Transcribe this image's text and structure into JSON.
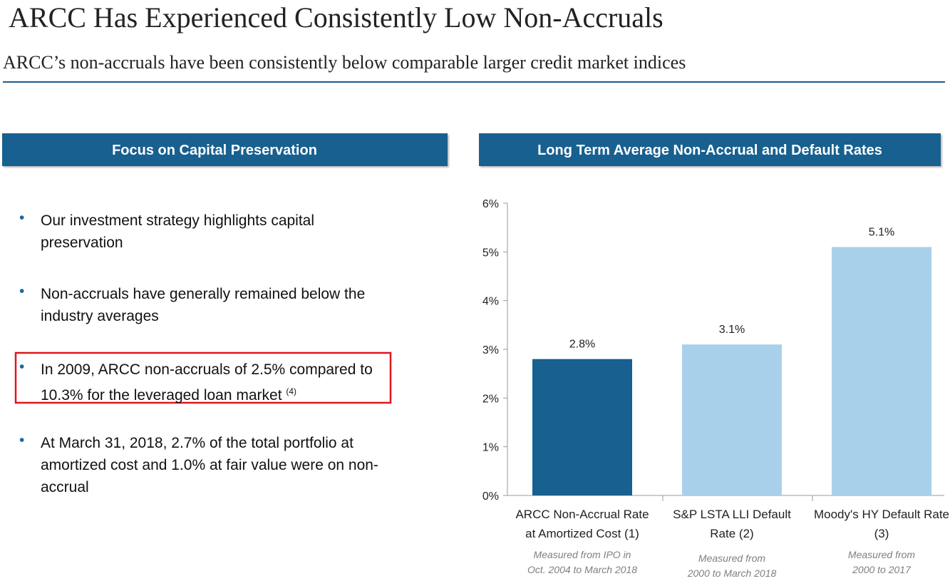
{
  "header": {
    "title": "ARCC Has Experienced Consistently Low Non-Accruals",
    "subtitle": "ARCC’s non-accruals have been consistently below comparable larger credit market indices"
  },
  "left_panel": {
    "title": "Focus on Capital Preservation",
    "bullets": [
      {
        "text": "Our investment strategy highlights capital preservation"
      },
      {
        "text": "Non-accruals have generally remained below the industry averages"
      },
      {
        "text": "In 2009, ARCC non-accruals of 2.5% compared to 10.3% for the leveraged loan market",
        "superscript": "(4)",
        "highlighted": true
      },
      {
        "text": "At March 31, 2018, 2.7% of the total portfolio at amortized cost and 1.0% at fair value were on non-accrual"
      }
    ]
  },
  "chart_data": {
    "type": "bar",
    "title": "Long Term Average Non-Accrual and Default Rates",
    "categories": [
      "ARCC Non-Accrual Rate at Amortized Cost (1)",
      "S&P LSTA LLI Default Rate (2)",
      "Moody's HY Default Rate (3)"
    ],
    "notes": [
      [
        "Measured from IPO in",
        "Oct. 2004 to March 2018"
      ],
      [
        "Measured from",
        "2000 to March 2018"
      ],
      [
        "Measured from",
        "2000 to 2017"
      ]
    ],
    "values": [
      2.8,
      3.1,
      5.1
    ],
    "value_labels": [
      "2.8%",
      "3.1%",
      "5.1%"
    ],
    "colors": [
      "#17608f",
      "#a9d0ea",
      "#a9d0ea"
    ],
    "ylim": [
      0,
      6
    ],
    "yticks": [
      {
        "value": 0,
        "label": "0%"
      },
      {
        "value": 1,
        "label": "1%"
      },
      {
        "value": 2,
        "label": "2%"
      },
      {
        "value": 3,
        "label": "3%"
      },
      {
        "value": 4,
        "label": "4%"
      },
      {
        "value": 5,
        "label": "5%"
      },
      {
        "value": 6,
        "label": "6%"
      }
    ],
    "grid": false
  }
}
